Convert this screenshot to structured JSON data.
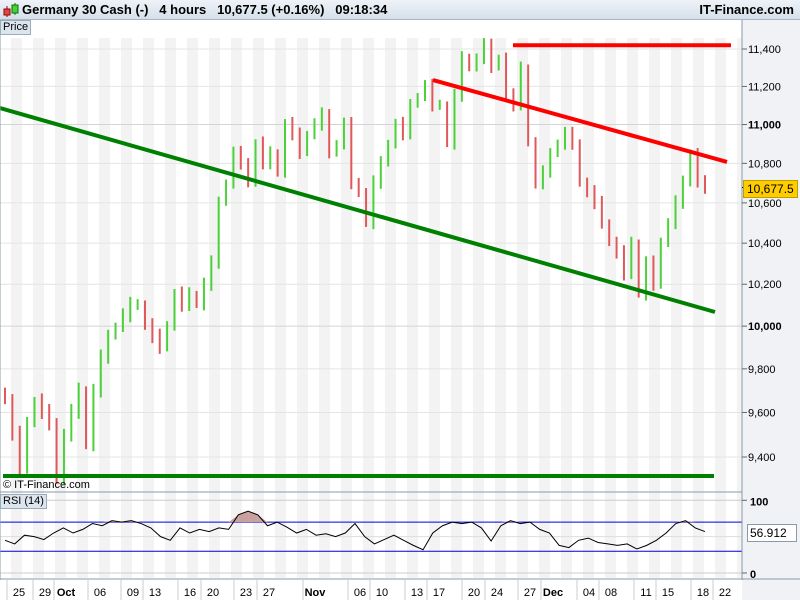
{
  "header": {
    "instrument": "Germany 30 Cash (-)",
    "timeframe": "4 hours",
    "last": "10,677.5 (+0.16%)",
    "time": "09:18:34",
    "brand": "IT-Finance.com"
  },
  "price_panel_label": "Price",
  "watermark": "© IT-Finance.com",
  "rsi_panel_label": "RSI (14)",
  "colors": {
    "up": "#4cd13a",
    "down": "#e0585a",
    "resistance": "#ff0000",
    "support": "#008000",
    "rsi_line": "#000000",
    "rsi_bands": "#0000dd",
    "price_tag": "#ffcc00"
  },
  "chart_data": [
    {
      "type": "bar",
      "scale": "log",
      "ylim": [
        9300,
        11500
      ],
      "y_ticks": [
        "11,400",
        "11,200",
        "11,000",
        "10,800",
        "10,600",
        "10,400",
        "10,200",
        "10,000",
        "9,800",
        "9,600",
        "9,400"
      ],
      "y_tick_values": [
        11400,
        11200,
        11000,
        10800,
        10600,
        10400,
        10200,
        10000,
        9800,
        9600,
        9400
      ],
      "last_price_label": "10,677.5",
      "x_ticks": [
        "25",
        "29",
        "Oct",
        "06",
        "09",
        "13",
        "16",
        "20",
        "23",
        "27",
        "Nov",
        "06",
        "10",
        "13",
        "17",
        "20",
        "24",
        "27",
        "Dec",
        "04",
        "08",
        "11",
        "15",
        "18",
        "22"
      ],
      "closes": [
        9650,
        9500,
        9350,
        9550,
        9650,
        9600,
        9550,
        9300,
        9500,
        9600,
        9700,
        9450,
        9700,
        9850,
        9950,
        10000,
        10050,
        10100,
        10100,
        10000,
        9950,
        9900,
        10000,
        10150,
        10100,
        10150,
        10100,
        10200,
        10300,
        10600,
        10700,
        10850,
        10800,
        10700,
        10900,
        10800,
        10850,
        10750,
        11000,
        10950,
        10850,
        10950,
        11000,
        11050,
        10850,
        10900,
        11000,
        10700,
        10650,
        10500,
        10700,
        10800,
        10900,
        11000,
        10950,
        11100,
        11150,
        11200,
        11100,
        11100,
        10900,
        11150,
        11350,
        11300,
        11350,
        11420,
        11300,
        11350,
        11150,
        11100,
        11300,
        10900,
        10700,
        10750,
        10850,
        10900,
        10950,
        10900,
        10700,
        10650,
        10600,
        10500,
        10400,
        10350,
        10250,
        10400,
        10150,
        10300,
        10200,
        10400,
        10500,
        10600,
        10700,
        10850,
        10700,
        10677.5
      ],
      "trendlines": [
        {
          "color": "resistance",
          "from": 11420,
          "to": 11420
        },
        {
          "color": "resistance",
          "from": 11234,
          "to": 10807
        },
        {
          "color": "support",
          "from": 11086,
          "to": 10067
        },
        {
          "color": "support",
          "from": 9316,
          "to": 9316
        }
      ]
    },
    {
      "type": "line",
      "ylim": [
        0,
        100
      ],
      "y_ticks": [
        "100",
        "0"
      ],
      "bands": [
        70,
        30
      ],
      "last_value_label": "56.912",
      "values": [
        45,
        40,
        52,
        50,
        46,
        55,
        62,
        55,
        60,
        68,
        65,
        72,
        70,
        72,
        68,
        62,
        50,
        45,
        62,
        55,
        60,
        57,
        62,
        60,
        80,
        85,
        80,
        65,
        70,
        63,
        55,
        60,
        52,
        54,
        50,
        55,
        68,
        50,
        40,
        46,
        52,
        45,
        38,
        32,
        55,
        65,
        70,
        68,
        70,
        62,
        44,
        65,
        72,
        68,
        70,
        60,
        55,
        38,
        35,
        45,
        48,
        42,
        40,
        38,
        40,
        33,
        38,
        45,
        55,
        68,
        72,
        62,
        57
      ]
    }
  ]
}
